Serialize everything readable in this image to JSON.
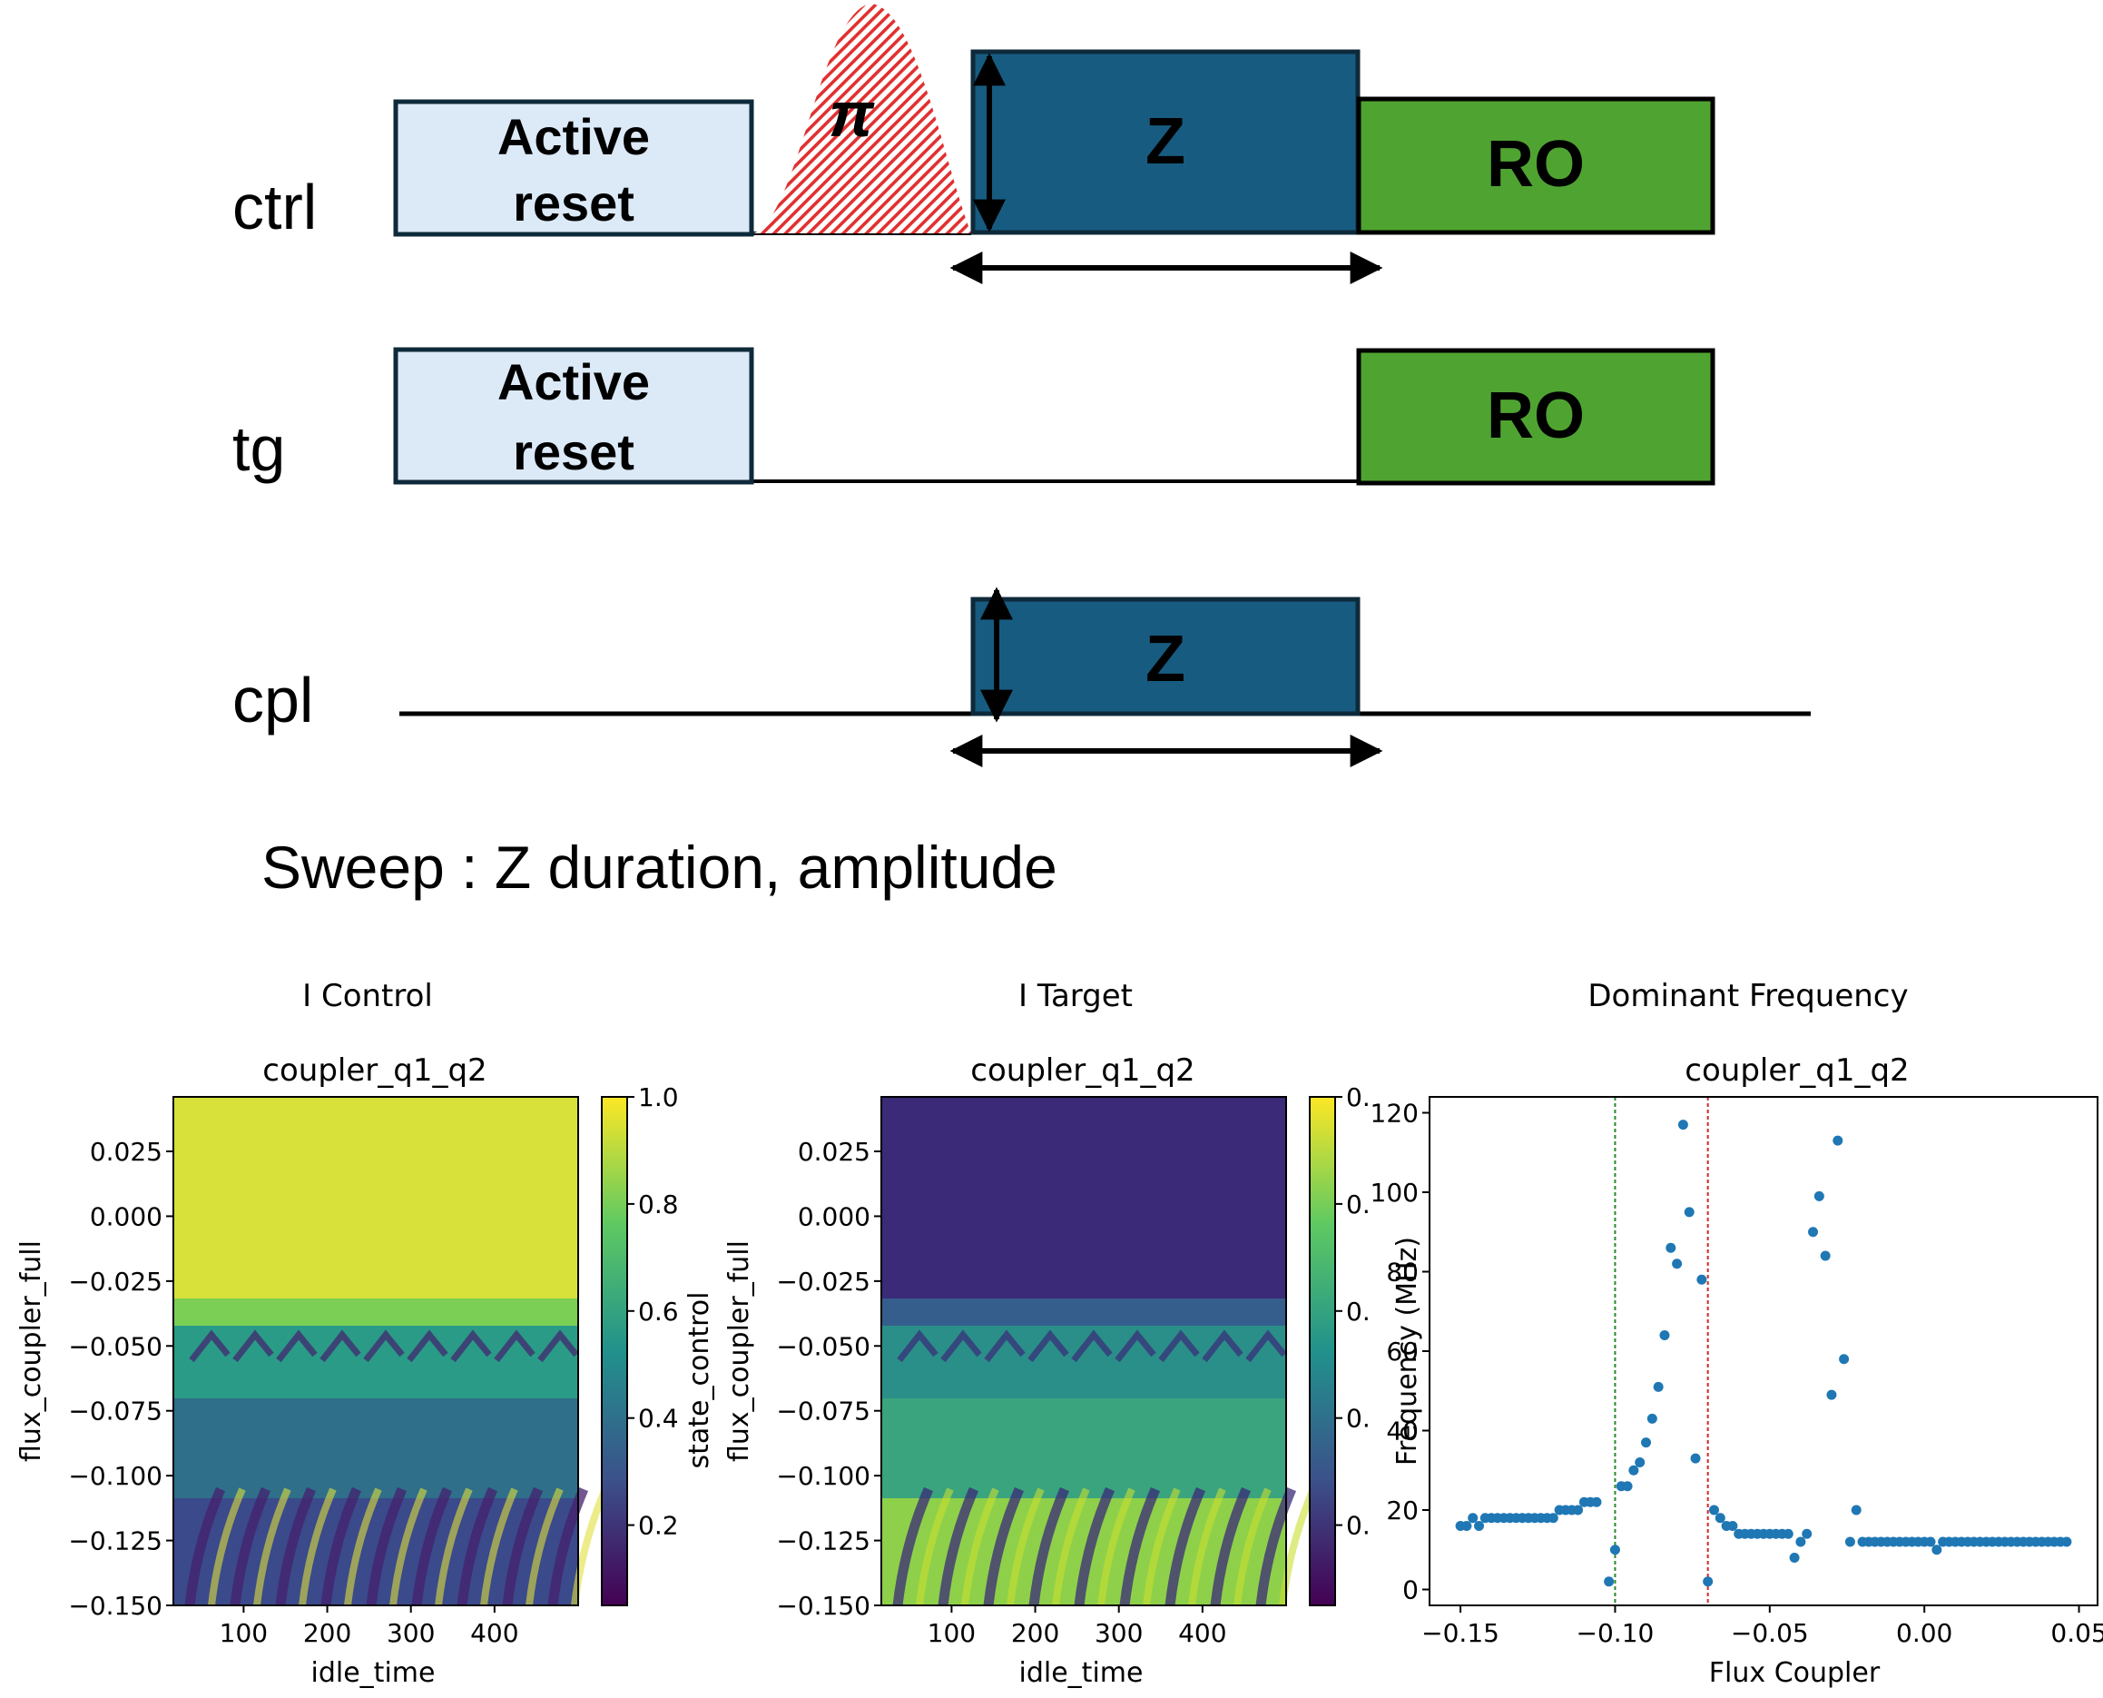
{
  "sequence": {
    "channels": [
      {
        "id": "ctrl",
        "label": "ctrl"
      },
      {
        "id": "tg",
        "label": "tg"
      },
      {
        "id": "cpl",
        "label": "cpl"
      }
    ],
    "pulses": {
      "ctrl_reset": {
        "line1": "Active",
        "line2": "reset",
        "fill": "#dce9f7"
      },
      "ctrl_pi": {
        "label": "π",
        "color": "#e03030"
      },
      "ctrl_z": {
        "label": "Z",
        "fill": "#175b80"
      },
      "ctrl_ro": {
        "label": "RO",
        "fill": "#4fa431"
      },
      "tg_reset": {
        "line1": "Active",
        "line2": "reset",
        "fill": "#dce9f7"
      },
      "tg_ro": {
        "label": "RO",
        "fill": "#4fa431"
      },
      "cpl_z": {
        "label": "Z",
        "fill": "#175b80"
      }
    },
    "sweep_text": "Sweep : Z duration, amplitude"
  },
  "chart_data": [
    {
      "type": "heatmap",
      "suptitle": "I Control",
      "title": "coupler_q1_q2",
      "xlabel": "idle_time",
      "ylabel": "flux_coupler_full",
      "colorbar_label": "state_control",
      "xlim": [
        16,
        500
      ],
      "ylim": [
        -0.15,
        0.046
      ],
      "xticks": [
        "100",
        "200",
        "300",
        "400"
      ],
      "yticks": [
        "0.025",
        "0.000",
        "−0.025",
        "−0.050",
        "−0.075",
        "−0.100",
        "−0.125",
        "−0.150"
      ],
      "colorbar_ticks": [
        "1.0",
        "0.8",
        "0.6",
        "0.4",
        "0.2"
      ],
      "colormap": "viridis"
    },
    {
      "type": "heatmap",
      "suptitle": "I Target",
      "title": "coupler_q1_q2",
      "xlabel": "idle_time",
      "ylabel": "flux_coupler_full",
      "xlim": [
        16,
        500
      ],
      "ylim": [
        -0.15,
        0.046
      ],
      "xticks": [
        "100",
        "200",
        "300",
        "400"
      ],
      "yticks": [
        "0.025",
        "0.000",
        "−0.025",
        "−0.050",
        "−0.075",
        "−0.100",
        "−0.125",
        "−0.150"
      ],
      "colorbar_ticks": [
        "0.",
        "0.",
        "0.",
        "0.",
        "0."
      ],
      "colormap": "viridis"
    },
    {
      "type": "scatter",
      "suptitle": "Dominant Frequency",
      "title": "coupler_q1_q2",
      "xlabel": "Flux Coupler",
      "ylabel": "Frequency (MHz)",
      "xlim": [
        -0.16,
        0.056
      ],
      "ylim": [
        -4,
        124
      ],
      "xticks": [
        {
          "v": -0.15,
          "label": "−0.15"
        },
        {
          "v": -0.1,
          "label": "−0.10"
        },
        {
          "v": -0.05,
          "label": "−0.05"
        },
        {
          "v": 0.0,
          "label": "0.00"
        },
        {
          "v": 0.05,
          "label": "0.05"
        }
      ],
      "yticks": [
        {
          "v": 0,
          "label": "0"
        },
        {
          "v": 20,
          "label": "20"
        },
        {
          "v": 40,
          "label": "40"
        },
        {
          "v": 60,
          "label": "60"
        },
        {
          "v": 80,
          "label": "80"
        },
        {
          "v": 100,
          "label": "100"
        },
        {
          "v": 120,
          "label": "120"
        }
      ],
      "vlines": [
        {
          "x": -0.1,
          "color": "#2a8a2a"
        },
        {
          "x": -0.07,
          "color": "#d62728"
        }
      ],
      "point_color": "#1f77b4",
      "points": [
        [
          -0.15,
          16
        ],
        [
          -0.148,
          16
        ],
        [
          -0.146,
          18
        ],
        [
          -0.144,
          16
        ],
        [
          -0.142,
          18
        ],
        [
          -0.14,
          18
        ],
        [
          -0.138,
          18
        ],
        [
          -0.136,
          18
        ],
        [
          -0.134,
          18
        ],
        [
          -0.132,
          18
        ],
        [
          -0.13,
          18
        ],
        [
          -0.128,
          18
        ],
        [
          -0.126,
          18
        ],
        [
          -0.124,
          18
        ],
        [
          -0.122,
          18
        ],
        [
          -0.12,
          18
        ],
        [
          -0.118,
          20
        ],
        [
          -0.116,
          20
        ],
        [
          -0.114,
          20
        ],
        [
          -0.112,
          20
        ],
        [
          -0.11,
          22
        ],
        [
          -0.108,
          22
        ],
        [
          -0.106,
          22
        ],
        [
          -0.102,
          2
        ],
        [
          -0.1,
          10
        ],
        [
          -0.098,
          26
        ],
        [
          -0.096,
          26
        ],
        [
          -0.094,
          30
        ],
        [
          -0.092,
          32
        ],
        [
          -0.09,
          37
        ],
        [
          -0.088,
          43
        ],
        [
          -0.086,
          51
        ],
        [
          -0.084,
          64
        ],
        [
          -0.082,
          86
        ],
        [
          -0.08,
          82
        ],
        [
          -0.078,
          117
        ],
        [
          -0.076,
          95
        ],
        [
          -0.074,
          33
        ],
        [
          -0.072,
          78
        ],
        [
          -0.07,
          2
        ],
        [
          -0.068,
          20
        ],
        [
          -0.066,
          18
        ],
        [
          -0.064,
          16
        ],
        [
          -0.062,
          16
        ],
        [
          -0.06,
          14
        ],
        [
          -0.058,
          14
        ],
        [
          -0.056,
          14
        ],
        [
          -0.054,
          14
        ],
        [
          -0.052,
          14
        ],
        [
          -0.05,
          14
        ],
        [
          -0.048,
          14
        ],
        [
          -0.046,
          14
        ],
        [
          -0.044,
          14
        ],
        [
          -0.042,
          8
        ],
        [
          -0.04,
          12
        ],
        [
          -0.038,
          14
        ],
        [
          -0.036,
          90
        ],
        [
          -0.034,
          99
        ],
        [
          -0.032,
          84
        ],
        [
          -0.03,
          49
        ],
        [
          -0.028,
          113
        ],
        [
          -0.026,
          58
        ],
        [
          -0.024,
          12
        ],
        [
          -0.022,
          20
        ],
        [
          -0.02,
          12
        ],
        [
          -0.018,
          12
        ],
        [
          -0.016,
          12
        ],
        [
          -0.014,
          12
        ],
        [
          -0.012,
          12
        ],
        [
          -0.01,
          12
        ],
        [
          -0.008,
          12
        ],
        [
          -0.006,
          12
        ],
        [
          -0.004,
          12
        ],
        [
          -0.002,
          12
        ],
        [
          0.0,
          12
        ],
        [
          0.002,
          12
        ],
        [
          0.004,
          10
        ],
        [
          0.006,
          12
        ],
        [
          0.008,
          12
        ],
        [
          0.01,
          12
        ],
        [
          0.012,
          12
        ],
        [
          0.014,
          12
        ],
        [
          0.016,
          12
        ],
        [
          0.018,
          12
        ],
        [
          0.02,
          12
        ],
        [
          0.022,
          12
        ],
        [
          0.024,
          12
        ],
        [
          0.026,
          12
        ],
        [
          0.028,
          12
        ],
        [
          0.03,
          12
        ],
        [
          0.032,
          12
        ],
        [
          0.034,
          12
        ],
        [
          0.036,
          12
        ],
        [
          0.038,
          12
        ],
        [
          0.04,
          12
        ],
        [
          0.042,
          12
        ],
        [
          0.044,
          12
        ],
        [
          0.046,
          12
        ]
      ]
    }
  ]
}
